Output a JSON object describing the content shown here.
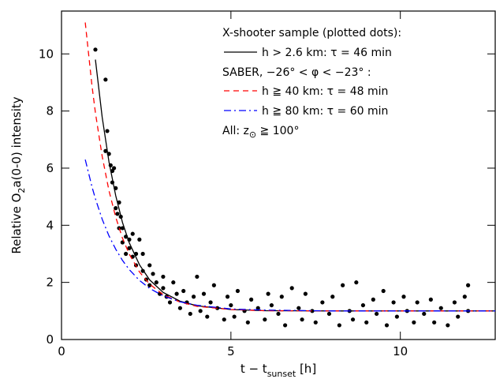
{
  "chart_data": {
    "type": "scatter",
    "xlabel": [
      "t − t",
      "sunset",
      " [h]"
    ],
    "ylabel": [
      "Relative O",
      "2",
      "a(0-0) intensity"
    ],
    "xlim": [
      0,
      12.8
    ],
    "ylim": [
      0,
      11.5
    ],
    "xticks": [
      0,
      5,
      10
    ],
    "yticks": [
      0,
      2,
      4,
      6,
      8,
      10
    ],
    "points": {
      "name": "X-shooter sample (plotted dots):",
      "color": "#000000",
      "x": [
        1.0,
        1.3,
        1.3,
        1.35,
        1.4,
        1.45,
        1.5,
        1.5,
        1.55,
        1.6,
        1.6,
        1.65,
        1.7,
        1.7,
        1.75,
        1.8,
        1.8,
        1.9,
        1.9,
        2.0,
        2.0,
        2.1,
        2.1,
        2.2,
        2.2,
        2.3,
        2.4,
        2.4,
        2.5,
        2.6,
        2.6,
        2.7,
        2.8,
        2.9,
        3.0,
        3.0,
        3.1,
        3.2,
        3.3,
        3.4,
        3.5,
        3.6,
        3.7,
        3.8,
        3.9,
        4.0,
        4.1,
        4.2,
        4.3,
        4.4,
        4.5,
        4.6,
        4.8,
        4.9,
        5.0,
        5.1,
        5.2,
        5.4,
        5.5,
        5.6,
        5.8,
        6.0,
        6.1,
        6.2,
        6.4,
        6.5,
        6.6,
        6.8,
        7.0,
        7.1,
        7.2,
        7.4,
        7.5,
        7.7,
        7.9,
        8.0,
        8.2,
        8.3,
        8.5,
        8.6,
        8.7,
        8.9,
        9.0,
        9.2,
        9.3,
        9.5,
        9.6,
        9.8,
        9.9,
        10.1,
        10.2,
        10.4,
        10.5,
        10.7,
        10.9,
        11.0,
        11.2,
        11.4,
        11.6,
        11.7,
        11.9,
        12.0,
        12.0
      ],
      "y": [
        10.15,
        9.1,
        6.6,
        7.3,
        6.5,
        6.1,
        5.9,
        5.5,
        6.0,
        5.3,
        4.6,
        4.4,
        4.8,
        3.9,
        4.3,
        3.9,
        3.4,
        3.6,
        3.0,
        3.5,
        3.2,
        2.9,
        3.7,
        3.0,
        2.6,
        3.5,
        2.4,
        3.0,
        2.1,
        2.6,
        1.9,
        2.3,
        2.0,
        1.6,
        1.8,
        2.2,
        1.5,
        1.3,
        2.0,
        1.6,
        1.1,
        1.7,
        1.3,
        0.9,
        1.5,
        2.2,
        1.0,
        1.6,
        0.8,
        1.3,
        1.9,
        1.1,
        0.7,
        1.5,
        1.2,
        0.8,
        1.7,
        1.0,
        0.6,
        1.4,
        1.1,
        0.7,
        1.6,
        1.2,
        0.9,
        1.5,
        0.5,
        1.8,
        1.1,
        0.7,
        1.6,
        1.0,
        0.6,
        1.3,
        0.9,
        1.5,
        0.5,
        1.9,
        1.0,
        0.7,
        2.0,
        1.2,
        0.6,
        1.4,
        0.9,
        1.7,
        0.5,
        1.3,
        0.8,
        1.5,
        1.0,
        0.6,
        1.3,
        0.9,
        1.4,
        0.6,
        1.1,
        0.5,
        1.3,
        0.8,
        1.5,
        1.9,
        1.0
      ]
    },
    "x": [
      0.7,
      0.9,
      1.0,
      1.2,
      1.4,
      1.6,
      1.8,
      2.0,
      2.3,
      2.6,
      3.0,
      3.5,
      4,
      5,
      6,
      8,
      10,
      12.8
    ],
    "series": [
      {
        "name": "h > 2.6 km: τ = 46 min",
        "color": "#000000",
        "dash": "none",
        "values": [
          null,
          null,
          9.8,
          7.78,
          6.22,
          5.03,
          4.1,
          3.39,
          2.62,
          2.09,
          1.65,
          1.34,
          1.18,
          1.05,
          1.01,
          1.0,
          1.0,
          1.0
        ]
      },
      {
        "name": "h ≧ 40 km: τ = 48 min",
        "color": "#ff0000",
        "dash": "7,5",
        "values": [
          11.1,
          8.87,
          7.94,
          6.41,
          5.21,
          4.28,
          3.55,
          2.99,
          2.37,
          1.94,
          1.57,
          1.31,
          1.16,
          1.05,
          1.01,
          1.0,
          1.0,
          1.0
        ]
      },
      {
        "name": "h ≧ 80 km: τ = 60 min",
        "color": "#0000ff",
        "dash": "9,4,2,4",
        "values": [
          6.3,
          5.34,
          4.93,
          4.21,
          3.63,
          3.16,
          2.77,
          2.45,
          2.07,
          1.79,
          1.53,
          1.32,
          1.2,
          1.07,
          1.03,
          1.0,
          1.0,
          1.0
        ]
      }
    ],
    "legend_note": "SABER, −26° < φ < −23° :",
    "legend_footer": [
      "All: z",
      "⊙",
      " ≧ 100°"
    ]
  }
}
